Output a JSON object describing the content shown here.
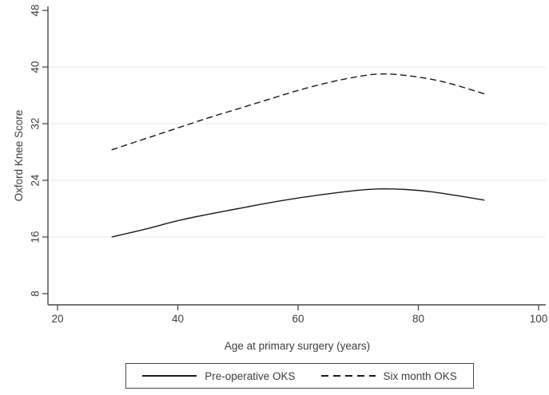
{
  "chart_data": {
    "type": "line",
    "title": "",
    "xlabel": "Age at primary surgery (years)",
    "ylabel": "Oxford Knee Score",
    "xlim": [
      18.4,
      101.2
    ],
    "ylim": [
      6.4,
      48.6
    ],
    "xticks": [
      20,
      40,
      60,
      80,
      100
    ],
    "yticks": [
      8,
      16,
      24,
      32,
      40,
      48
    ],
    "grid_y": [
      16,
      24,
      32,
      40
    ],
    "grid_on": true,
    "legend_position": "bottom-center",
    "colors": {
      "line": "#1a1a1a",
      "axis": "#4a4a4a",
      "grid": "#e9e9e9",
      "text": "#3d3d3d"
    },
    "series": [
      {
        "name": "Pre-operative OKS",
        "style": "solid",
        "points": [
          [
            29,
            16.0
          ],
          [
            35,
            17.2
          ],
          [
            40,
            18.3
          ],
          [
            45,
            19.2
          ],
          [
            50,
            20.0
          ],
          [
            55,
            20.8
          ],
          [
            60,
            21.5
          ],
          [
            65,
            22.1
          ],
          [
            70,
            22.6
          ],
          [
            74,
            22.8
          ],
          [
            78,
            22.7
          ],
          [
            82,
            22.4
          ],
          [
            86,
            21.9
          ],
          [
            91,
            21.2
          ]
        ]
      },
      {
        "name": "Six month OKS",
        "style": "dashed",
        "points": [
          [
            29,
            28.3
          ],
          [
            35,
            30.0
          ],
          [
            40,
            31.4
          ],
          [
            45,
            32.8
          ],
          [
            50,
            34.1
          ],
          [
            55,
            35.4
          ],
          [
            60,
            36.7
          ],
          [
            65,
            37.8
          ],
          [
            69,
            38.5
          ],
          [
            73,
            39.0
          ],
          [
            77,
            38.9
          ],
          [
            82,
            38.3
          ],
          [
            86,
            37.5
          ],
          [
            91,
            36.2
          ]
        ]
      }
    ]
  }
}
